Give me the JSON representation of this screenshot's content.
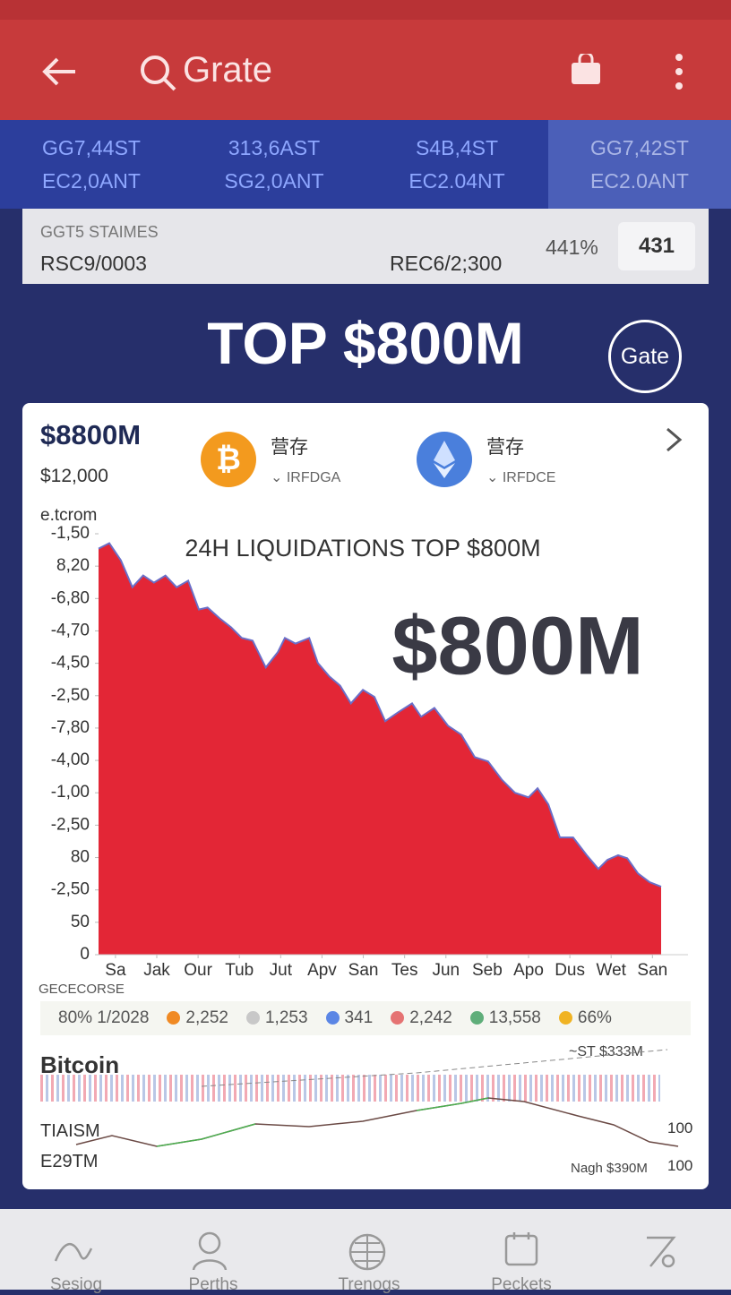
{
  "header": {
    "title": "Grate"
  },
  "tickers": [
    {
      "line1": "GG7,44ST",
      "line2": "EC2,0ANT"
    },
    {
      "line1": "313,6AST",
      "line2": "SG2,0ANT"
    },
    {
      "line1": "S4B,4ST",
      "line2": "EC2.04NT"
    },
    {
      "line1": "GG7,42ST",
      "line2": "EC2.0ANT"
    }
  ],
  "summary": {
    "label": "GGT5 STAIMES",
    "left": "RSC9/0003",
    "middle": "REC6/2;300",
    "percent": "441%",
    "badge": "431"
  },
  "banner": {
    "title": "TOP $800M",
    "logo": "Gate"
  },
  "card": {
    "amount": "$8800M",
    "subamount": "$12,000",
    "coins": [
      {
        "name": "营存",
        "code": "IRFDGA"
      },
      {
        "name": "营存",
        "code": "IRFDCE"
      }
    ]
  },
  "chart_data": {
    "type": "area",
    "title": "24H LIQUIDATIONS TOP $800M",
    "annotation": "$800M",
    "y_label": "e.tcrom",
    "color": "#e32636",
    "line_color": "#6a6fc8",
    "x": [
      -0.41,
      -0.15,
      0.13,
      0.41,
      0.67,
      0.93,
      1.21,
      1.48,
      1.76,
      2.02,
      2.23,
      2.52,
      2.8,
      3.06,
      3.32,
      3.64,
      3.93,
      4.1,
      4.36,
      4.69,
      4.9,
      5.18,
      5.44,
      5.7,
      5.99,
      6.27,
      6.53,
      6.85,
      7.18,
      7.4,
      7.72,
      8.05,
      8.37,
      8.7,
      9.02,
      9.35,
      9.67,
      10.0,
      10.22,
      10.48,
      10.76,
      11.08,
      11.41,
      11.69,
      11.91,
      12.17,
      12.39,
      12.65,
      12.93,
      13.21
    ],
    "values": [
      12.54,
      12.71,
      12.18,
      11.35,
      11.71,
      11.49,
      11.71,
      11.35,
      11.55,
      10.66,
      10.72,
      10.39,
      10.11,
      9.78,
      9.7,
      8.87,
      9.34,
      9.78,
      9.61,
      9.78,
      9.01,
      8.59,
      8.31,
      7.76,
      8.18,
      7.96,
      7.21,
      7.49,
      7.76,
      7.35,
      7.62,
      7.07,
      6.8,
      6.1,
      5.97,
      5.41,
      5.0,
      4.86,
      5.14,
      4.64,
      3.62,
      3.62,
      3.07,
      2.65,
      2.93,
      3.07,
      2.98,
      2.51,
      2.24,
      2.1
    ],
    "xlim": [
      -0.41,
      13.21
    ],
    "ylim": [
      0,
      13
    ],
    "xticks": [
      {
        "value": 0,
        "label": "Sa"
      },
      {
        "value": 1,
        "label": "Jak"
      },
      {
        "value": 2,
        "label": "Our"
      },
      {
        "value": 3,
        "label": "Tub"
      },
      {
        "value": 4,
        "label": "Jut"
      },
      {
        "value": 5,
        "label": "Apv"
      },
      {
        "value": 6,
        "label": "San"
      },
      {
        "value": 7,
        "label": "Tes"
      },
      {
        "value": 8,
        "label": "Jun"
      },
      {
        "value": 9,
        "label": "Seb"
      },
      {
        "value": 10,
        "label": "Apo"
      },
      {
        "value": 11,
        "label": "Dus"
      },
      {
        "value": 12,
        "label": "Wet"
      },
      {
        "value": 13,
        "label": "San"
      }
    ],
    "yticks": [
      0,
      {
        "value": 1,
        "label": "50"
      },
      {
        "value": 2,
        "label": "-2,50"
      },
      {
        "value": 3,
        "label": "80"
      },
      {
        "value": 4,
        "label": "-2,50"
      },
      {
        "value": 5,
        "label": "-1,00"
      },
      {
        "value": 6,
        "label": "-4,00"
      },
      {
        "value": 7,
        "label": "-7,80"
      },
      {
        "value": 8,
        "label": "-2,50"
      },
      {
        "value": 9,
        "label": "-4,50"
      },
      {
        "value": 10,
        "label": "-4,70"
      },
      {
        "value": 11,
        "label": "-6,80"
      },
      {
        "value": 12,
        "label": "8,20"
      },
      {
        "value": 13,
        "label": "-1,50"
      }
    ]
  },
  "legend": {
    "title": "GECECORSE",
    "lead": "80% 1/2028",
    "items": [
      {
        "text": "2,252",
        "color": "#f08a24"
      },
      {
        "text": "1,253",
        "color": "#c8c8c8"
      },
      {
        "text": "341",
        "color": "#5b86e5"
      },
      {
        "text": "2,242",
        "color": "#e57373"
      },
      {
        "text": "13,558",
        "color": "#5fae7a"
      },
      {
        "text": "66%",
        "color": "#f0b323"
      }
    ]
  },
  "mini": {
    "title": "Bitcoin",
    "top_right": "~ST $333M",
    "label1": "TIAISM",
    "label2": "E29TM",
    "right1": "100",
    "right2": "100",
    "bottom_right": "Nagh $390M"
  },
  "nav": [
    "Sesiog",
    "Perths",
    "Trenogs",
    "Peckets"
  ]
}
